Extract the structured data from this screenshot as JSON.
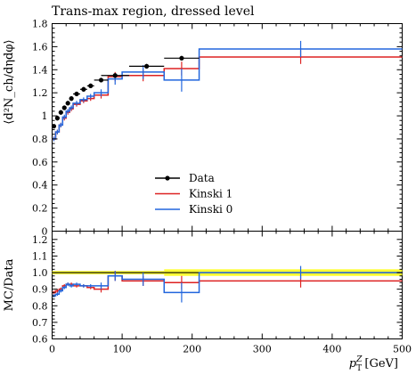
{
  "chart_data": [
    {
      "panel": "main",
      "type": "line",
      "title": "Trans-max region, dressed level",
      "ylabel": "⟨d²N_ch/dηdφ⟩",
      "xlim": [
        0,
        500
      ],
      "ylim": [
        0,
        1.8
      ],
      "yticks": [
        "0",
        "0.2",
        "0.4",
        "0.6",
        "0.8",
        "1",
        "1.2",
        "1.4",
        "1.6",
        "1.8"
      ],
      "legend": {
        "position": "center-right",
        "entries": [
          "Data",
          "Kinski 1",
          "Kinski 0"
        ]
      },
      "series": [
        {
          "name": "Data",
          "kind": "points",
          "color": "#000000",
          "x": [
            2.5,
            7.5,
            12.5,
            17.5,
            22.5,
            27.5,
            35,
            45,
            55,
            70,
            90,
            135,
            185
          ],
          "xerr": [
            2.5,
            2.5,
            2.5,
            2.5,
            2.5,
            2.5,
            5,
            5,
            5,
            10,
            20,
            25,
            25
          ],
          "y": [
            0.91,
            0.98,
            1.03,
            1.07,
            1.11,
            1.15,
            1.19,
            1.23,
            1.26,
            1.31,
            1.35,
            1.43,
            1.5
          ],
          "yerr": [
            0.02,
            0.02,
            0.02,
            0.02,
            0.02,
            0.02,
            0.02,
            0.02,
            0.02,
            0.02,
            0.02,
            0.02,
            0.02
          ]
        },
        {
          "name": "Kinski 1",
          "kind": "step",
          "color": "#dd2222",
          "edges": [
            0,
            5,
            10,
            15,
            20,
            25,
            30,
            40,
            50,
            60,
            80,
            100,
            160,
            210,
            500
          ],
          "values": [
            0.8,
            0.86,
            0.92,
            0.98,
            1.03,
            1.06,
            1.1,
            1.13,
            1.15,
            1.18,
            1.34,
            1.35,
            1.41,
            1.51
          ],
          "errs": [
            0.02,
            0.02,
            0.02,
            0.02,
            0.02,
            0.02,
            0.02,
            0.02,
            0.02,
            0.03,
            0.04,
            0.05,
            0.06,
            0.06
          ]
        },
        {
          "name": "Kinski 0",
          "kind": "step",
          "color": "#2266dd",
          "edges": [
            0,
            5,
            10,
            15,
            20,
            25,
            30,
            40,
            50,
            60,
            80,
            100,
            160,
            210,
            500
          ],
          "values": [
            0.8,
            0.86,
            0.92,
            0.99,
            1.04,
            1.07,
            1.11,
            1.14,
            1.17,
            1.2,
            1.32,
            1.38,
            1.31,
            1.58
          ],
          "errs": [
            0.02,
            0.02,
            0.02,
            0.02,
            0.02,
            0.02,
            0.02,
            0.02,
            0.02,
            0.03,
            0.05,
            0.06,
            0.1,
            0.07
          ]
        }
      ]
    },
    {
      "panel": "ratio",
      "type": "line",
      "ylabel": "MC/Data",
      "xlabel": "p_T^Z [GeV]",
      "xlim": [
        0,
        500
      ],
      "ylim": [
        0.6,
        1.25
      ],
      "yticks": [
        "0.6",
        "0.7",
        "0.8",
        "0.9",
        "1.0",
        "1.1",
        "1.2"
      ],
      "xticks": [
        "0",
        "100",
        "200",
        "300",
        "400",
        "500"
      ],
      "band": {
        "color": "#ffff33",
        "edges": [
          0,
          160,
          210,
          500
        ],
        "halfwidth": [
          0.01,
          0.02,
          0.02
        ]
      },
      "series": [
        {
          "name": "Kinski 1",
          "color": "#dd2222",
          "edges": [
            0,
            5,
            10,
            15,
            20,
            25,
            30,
            40,
            50,
            60,
            80,
            100,
            160,
            210,
            500
          ],
          "values": [
            0.88,
            0.89,
            0.9,
            0.92,
            0.93,
            0.93,
            0.92,
            0.92,
            0.91,
            0.9,
            0.98,
            0.95,
            0.94,
            0.95
          ],
          "errs": [
            0.01,
            0.01,
            0.01,
            0.01,
            0.01,
            0.01,
            0.01,
            0.01,
            0.01,
            0.02,
            0.03,
            0.03,
            0.04,
            0.04
          ]
        },
        {
          "name": "Kinski 0",
          "color": "#2266dd",
          "edges": [
            0,
            5,
            10,
            15,
            20,
            25,
            30,
            40,
            50,
            60,
            80,
            100,
            160,
            210,
            500
          ],
          "values": [
            0.86,
            0.87,
            0.89,
            0.91,
            0.93,
            0.92,
            0.93,
            0.92,
            0.92,
            0.92,
            0.98,
            0.96,
            0.88,
            1.0
          ],
          "errs": [
            0.01,
            0.01,
            0.01,
            0.01,
            0.01,
            0.01,
            0.01,
            0.01,
            0.01,
            0.02,
            0.03,
            0.04,
            0.06,
            0.04
          ]
        }
      ]
    }
  ]
}
